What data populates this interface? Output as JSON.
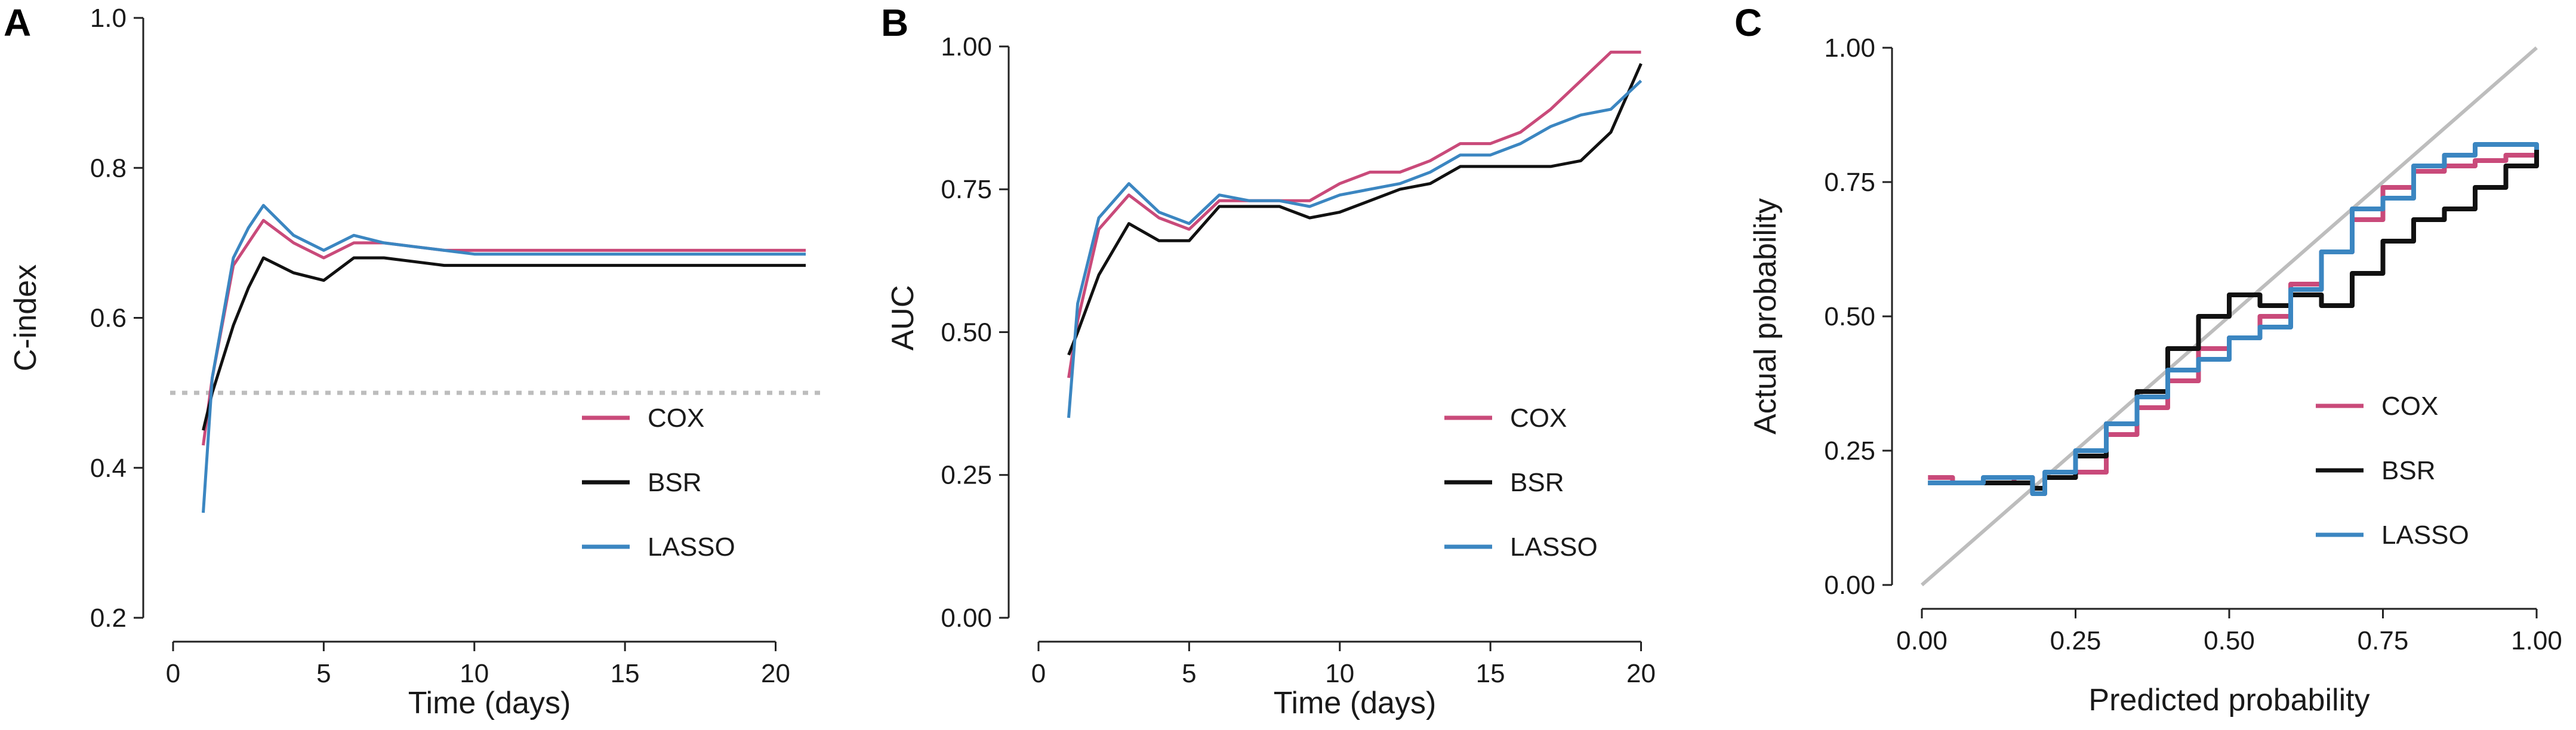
{
  "colors": {
    "COX": "#c94a7a",
    "BSR": "#111111",
    "LASSO": "#3b86c1",
    "reference": "#bdbdbd",
    "axis": "#222222"
  },
  "chart_data": [
    {
      "panel": "A",
      "type": "line",
      "xlabel": "Time (days)",
      "ylabel": "C-index",
      "xlim": [
        0,
        21
      ],
      "ylim": [
        0.2,
        1.0
      ],
      "xticks": [
        0,
        5,
        10,
        15,
        20
      ],
      "xtick_labels": [
        "0",
        "5",
        "10",
        "15",
        "20"
      ],
      "yticks": [
        0.2,
        0.4,
        0.6,
        0.8,
        1.0
      ],
      "ytick_labels": [
        "0.2",
        "0.4",
        "0.6",
        "0.8",
        "1.0"
      ],
      "reference_line": {
        "y": 0.5,
        "style": "dotted"
      },
      "legend": [
        "COX",
        "BSR",
        "LASSO"
      ],
      "series": [
        {
          "name": "COX",
          "x": [
            1,
            1.3,
            2,
            2.5,
            3,
            4,
            5,
            6,
            7,
            8,
            9,
            10,
            12,
            14,
            16,
            18,
            21
          ],
          "y": [
            0.43,
            0.52,
            0.67,
            0.7,
            0.73,
            0.7,
            0.68,
            0.7,
            0.7,
            0.695,
            0.69,
            0.69,
            0.69,
            0.69,
            0.69,
            0.69,
            0.69
          ]
        },
        {
          "name": "BSR",
          "x": [
            1,
            1.3,
            2,
            2.5,
            3,
            4,
            5,
            6,
            7,
            8,
            9,
            10,
            12,
            14,
            16,
            18,
            21
          ],
          "y": [
            0.45,
            0.5,
            0.59,
            0.64,
            0.68,
            0.66,
            0.65,
            0.68,
            0.68,
            0.675,
            0.67,
            0.67,
            0.67,
            0.67,
            0.67,
            0.67,
            0.67
          ]
        },
        {
          "name": "LASSO",
          "x": [
            1,
            1.3,
            2,
            2.5,
            3,
            4,
            5,
            6,
            7,
            8,
            9,
            10,
            12,
            14,
            16,
            18,
            21
          ],
          "y": [
            0.34,
            0.52,
            0.68,
            0.72,
            0.75,
            0.71,
            0.69,
            0.71,
            0.7,
            0.695,
            0.69,
            0.685,
            0.685,
            0.685,
            0.685,
            0.685,
            0.685
          ]
        }
      ]
    },
    {
      "panel": "B",
      "type": "line",
      "xlabel": "Time (days)",
      "ylabel": "AUC",
      "xlim": [
        0,
        21
      ],
      "ylim": [
        0,
        1.05
      ],
      "xticks": [
        0,
        5,
        10,
        15,
        20
      ],
      "xtick_labels": [
        "0",
        "5",
        "10",
        "15",
        "20"
      ],
      "yticks": [
        0,
        0.25,
        0.5,
        0.75,
        1.0
      ],
      "ytick_labels": [
        "0.00",
        "0.25",
        "0.50",
        "0.75",
        "1.00"
      ],
      "legend": [
        "COX",
        "BSR",
        "LASSO"
      ],
      "series": [
        {
          "name": "COX",
          "x": [
            1,
            1.3,
            2,
            3,
            4,
            5,
            6,
            7,
            8,
            9,
            10,
            11,
            12,
            13,
            14,
            15,
            16,
            17,
            18,
            19,
            20
          ],
          "y": [
            0.42,
            0.52,
            0.68,
            0.74,
            0.7,
            0.68,
            0.73,
            0.73,
            0.73,
            0.73,
            0.76,
            0.78,
            0.78,
            0.8,
            0.83,
            0.83,
            0.85,
            0.89,
            0.94,
            0.99,
            0.99
          ]
        },
        {
          "name": "BSR",
          "x": [
            1,
            1.3,
            2,
            3,
            4,
            5,
            6,
            7,
            8,
            9,
            10,
            11,
            12,
            13,
            14,
            15,
            16,
            17,
            18,
            19,
            20
          ],
          "y": [
            0.46,
            0.5,
            0.6,
            0.69,
            0.66,
            0.66,
            0.72,
            0.72,
            0.72,
            0.7,
            0.71,
            0.73,
            0.75,
            0.76,
            0.79,
            0.79,
            0.79,
            0.79,
            0.8,
            0.85,
            0.97
          ]
        },
        {
          "name": "LASSO",
          "x": [
            1,
            1.3,
            2,
            3,
            4,
            5,
            6,
            7,
            8,
            9,
            10,
            11,
            12,
            13,
            14,
            15,
            16,
            17,
            18,
            19,
            20
          ],
          "y": [
            0.35,
            0.55,
            0.7,
            0.76,
            0.71,
            0.69,
            0.74,
            0.73,
            0.73,
            0.72,
            0.74,
            0.75,
            0.76,
            0.78,
            0.81,
            0.81,
            0.83,
            0.86,
            0.88,
            0.89,
            0.94
          ]
        }
      ]
    },
    {
      "panel": "C",
      "type": "line",
      "xlabel": "Predicted probability",
      "ylabel": "Actual probability",
      "xlim": [
        0,
        1
      ],
      "ylim": [
        0,
        1
      ],
      "xticks": [
        0,
        0.25,
        0.5,
        0.75,
        1.0
      ],
      "xtick_labels": [
        "0.00",
        "0.25",
        "0.50",
        "0.75",
        "1.00"
      ],
      "yticks": [
        0,
        0.25,
        0.5,
        0.75,
        1.0
      ],
      "ytick_labels": [
        "0.00",
        "0.25",
        "0.50",
        "0.75",
        "1.00"
      ],
      "reference_line": {
        "x": [
          0,
          1
        ],
        "y": [
          0,
          1
        ],
        "style": "diagonal"
      },
      "legend": [
        "COX",
        "BSR",
        "LASSO"
      ],
      "series": [
        {
          "name": "COX",
          "x": [
            0.01,
            0.05,
            0.1,
            0.15,
            0.18,
            0.2,
            0.25,
            0.3,
            0.35,
            0.4,
            0.45,
            0.5,
            0.55,
            0.6,
            0.65,
            0.7,
            0.75,
            0.8,
            0.85,
            0.9,
            0.95,
            1.0
          ],
          "y": [
            0.2,
            0.19,
            0.19,
            0.2,
            0.17,
            0.2,
            0.21,
            0.28,
            0.33,
            0.38,
            0.44,
            0.46,
            0.5,
            0.56,
            0.62,
            0.68,
            0.74,
            0.77,
            0.78,
            0.79,
            0.8,
            0.81
          ]
        },
        {
          "name": "BSR",
          "x": [
            0.01,
            0.05,
            0.1,
            0.15,
            0.18,
            0.2,
            0.25,
            0.3,
            0.35,
            0.4,
            0.45,
            0.5,
            0.55,
            0.6,
            0.65,
            0.7,
            0.75,
            0.8,
            0.85,
            0.9,
            0.95,
            1.0
          ],
          "y": [
            0.19,
            0.19,
            0.19,
            0.19,
            0.18,
            0.2,
            0.24,
            0.3,
            0.36,
            0.44,
            0.5,
            0.54,
            0.52,
            0.54,
            0.52,
            0.58,
            0.64,
            0.68,
            0.7,
            0.74,
            0.78,
            0.82
          ]
        },
        {
          "name": "LASSO",
          "x": [
            0.01,
            0.05,
            0.1,
            0.15,
            0.18,
            0.2,
            0.25,
            0.3,
            0.35,
            0.4,
            0.45,
            0.5,
            0.55,
            0.6,
            0.65,
            0.7,
            0.75,
            0.8,
            0.85,
            0.9,
            0.95,
            1.0
          ],
          "y": [
            0.19,
            0.19,
            0.2,
            0.2,
            0.17,
            0.21,
            0.25,
            0.3,
            0.35,
            0.4,
            0.42,
            0.46,
            0.48,
            0.55,
            0.62,
            0.7,
            0.72,
            0.78,
            0.8,
            0.82,
            0.82,
            0.81
          ]
        }
      ]
    }
  ]
}
